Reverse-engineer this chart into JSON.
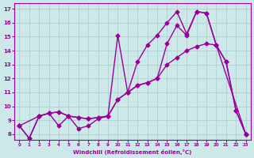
{
  "xlabel": "Windchill (Refroidissement éolien,°C)",
  "bg_color": "#cce8e8",
  "line_color": "#990099",
  "grid_color": "#aacccc",
  "xlim": [
    -0.5,
    23.5
  ],
  "ylim": [
    7.6,
    17.4
  ],
  "xticks": [
    0,
    1,
    2,
    3,
    4,
    5,
    6,
    7,
    8,
    9,
    10,
    11,
    12,
    13,
    14,
    15,
    16,
    17,
    18,
    19,
    20,
    21,
    22,
    23
  ],
  "yticks": [
    8,
    9,
    10,
    11,
    12,
    13,
    14,
    15,
    16,
    17
  ],
  "line1_x": [
    0,
    1,
    2,
    3,
    4,
    5,
    6,
    7,
    8,
    9,
    10,
    11,
    12,
    13,
    14,
    15,
    16,
    17,
    18,
    19,
    20,
    21,
    22,
    23
  ],
  "line1_y": [
    8.6,
    7.7,
    9.3,
    9.5,
    8.6,
    9.3,
    8.4,
    8.6,
    9.1,
    9.3,
    15.1,
    11.0,
    13.2,
    14.4,
    15.1,
    16.0,
    16.8,
    15.2,
    16.8,
    16.7,
    14.4,
    13.2,
    9.7,
    8.0
  ],
  "line2_x": [
    0,
    1,
    2,
    3,
    4,
    5,
    6,
    7,
    8,
    9,
    10,
    11,
    12,
    13,
    14,
    15,
    16,
    17,
    18,
    19,
    20,
    21,
    22,
    23
  ],
  "line2_y": [
    8.6,
    7.7,
    9.3,
    9.5,
    9.6,
    9.3,
    9.2,
    9.1,
    9.2,
    9.3,
    10.5,
    11.0,
    11.5,
    11.7,
    12.0,
    14.5,
    15.8,
    15.1,
    16.8,
    16.7,
    14.4,
    13.2,
    9.7,
    8.0
  ],
  "line3_x": [
    0,
    2,
    3,
    4,
    5,
    6,
    7,
    8,
    9,
    10,
    11,
    12,
    13,
    14,
    15,
    16,
    17,
    18,
    19,
    20,
    23
  ],
  "line3_y": [
    8.6,
    9.3,
    9.5,
    9.6,
    9.3,
    9.2,
    9.1,
    9.2,
    9.3,
    10.5,
    11.0,
    11.5,
    11.7,
    12.0,
    13.0,
    13.5,
    14.0,
    14.3,
    14.5,
    14.4,
    8.0
  ],
  "marker": "D",
  "markersize": 2.5,
  "linewidth": 1.0
}
